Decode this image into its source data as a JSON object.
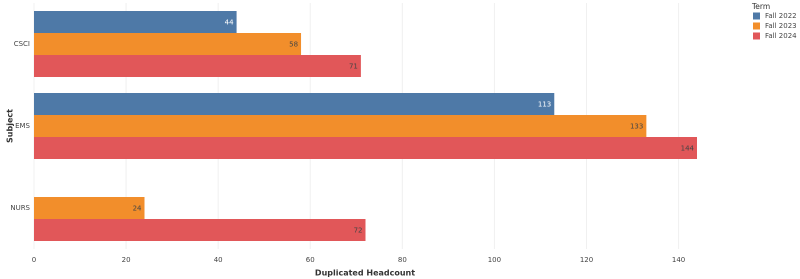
{
  "chart_data": {
    "type": "bar",
    "orientation": "horizontal",
    "x_label": "Duplicated Headcount",
    "y_label": "Subject",
    "categories": [
      "CSCI",
      "EMS",
      "NURS"
    ],
    "series": [
      {
        "name": "Fall 2022",
        "color": "#4e79a7",
        "label_color": "#ffffff",
        "values": [
          44,
          113,
          null
        ]
      },
      {
        "name": "Fall 2023",
        "color": "#f28e2b",
        "label_color": "#444444",
        "values": [
          58,
          133,
          24
        ]
      },
      {
        "name": "Fall 2024",
        "color": "#e15759",
        "label_color": "#444444",
        "values": [
          71,
          144,
          72
        ]
      }
    ],
    "xlim": [
      0,
      144
    ],
    "xticks": [
      0,
      20,
      40,
      60,
      80,
      100,
      120,
      140
    ],
    "legend_title": "Term",
    "legend": "top-right",
    "grid": true
  }
}
